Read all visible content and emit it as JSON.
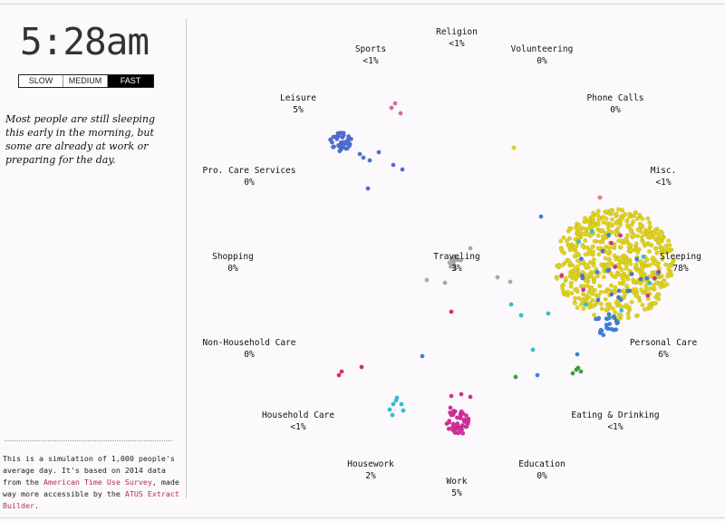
{
  "clock": "5:28am",
  "speed": {
    "slow": "SLOW",
    "medium": "MEDIUM",
    "fast": "FAST",
    "selected": "FAST"
  },
  "narrative": "Most people are still sleeping this early in the morning, but some are already at work or preparing for the day.",
  "footnote": {
    "text1": "This is a simulation of 1,000 people's average day. It's based on 2014 data from the ",
    "link1": "American Time Use Survey",
    "text2": ", made way more accessible by the ",
    "link2": "ATUS Extract Builder",
    "text3": "."
  },
  "activities": [
    {
      "name": "Religion",
      "pct": "<1%"
    },
    {
      "name": "Sports",
      "pct": "<1%"
    },
    {
      "name": "Volunteering",
      "pct": "0%"
    },
    {
      "name": "Leisure",
      "pct": "5%"
    },
    {
      "name": "Phone Calls",
      "pct": "0%"
    },
    {
      "name": "Pro. Care Services",
      "pct": "0%"
    },
    {
      "name": "Misc.",
      "pct": "<1%"
    },
    {
      "name": "Shopping",
      "pct": "0%"
    },
    {
      "name": "Traveling",
      "pct": "3%"
    },
    {
      "name": "Sleeping",
      "pct": "78%"
    },
    {
      "name": "Non-Household Care",
      "pct": "0%"
    },
    {
      "name": "Personal Care",
      "pct": "6%"
    },
    {
      "name": "Household Care",
      "pct": "<1%"
    },
    {
      "name": "Eating & Drinking",
      "pct": "<1%"
    },
    {
      "name": "Housework",
      "pct": "2%"
    },
    {
      "name": "Education",
      "pct": "0%"
    },
    {
      "name": "Work",
      "pct": "5%"
    }
  ],
  "colors": {
    "sleeping": "#e0d31c",
    "leisure": "#4f6fd8",
    "work": "#d42f9a",
    "traveling": "#aaaaaa",
    "personal_care": "#3a82dd",
    "household_care": "#2cc1d8",
    "eating": "#3aa03a",
    "sports": "#e063b3",
    "red": "#d42f5a",
    "orange": "#e0836a"
  }
}
